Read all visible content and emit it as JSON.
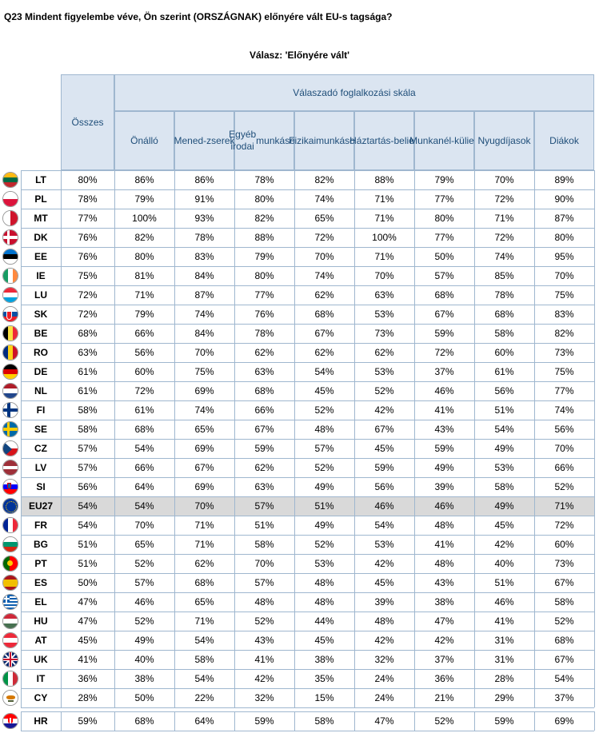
{
  "question_title": "Q23 Mindent figyelembe véve, Ön szerint (ORSZÁGNAK) előnyére vált EU-s tagsága?",
  "answer_label": "Válasz: 'Előnyére vált'",
  "header": {
    "overall": "Összes",
    "group": "Válaszadó foglalkozási skála",
    "columns": [
      "Önálló",
      "Menedzserek",
      "Egyéb irodai munkások",
      "Fizikai munkások",
      "Háztartásbeliek",
      "Munkanélküliek",
      "Nyugdíjasok",
      "Diákok"
    ],
    "columns_display": [
      [
        "Önálló"
      ],
      [
        "Mened-",
        "zserek"
      ],
      [
        "Egyéb irodai",
        "munkások"
      ],
      [
        "Fizikai",
        "munkások"
      ],
      [
        "Háztartás-",
        "beliek"
      ],
      [
        "Munkanél-",
        "küliek"
      ],
      [
        "Nyugdíjasok"
      ],
      [
        "Diákok"
      ]
    ]
  },
  "rows": [
    {
      "country": "LT",
      "flag": "LT",
      "values": [
        "80%",
        "86%",
        "86%",
        "78%",
        "82%",
        "88%",
        "79%",
        "70%",
        "89%"
      ]
    },
    {
      "country": "PL",
      "flag": "PL",
      "values": [
        "78%",
        "79%",
        "91%",
        "80%",
        "74%",
        "71%",
        "77%",
        "72%",
        "90%"
      ]
    },
    {
      "country": "MT",
      "flag": "MT",
      "values": [
        "77%",
        "100%",
        "93%",
        "82%",
        "65%",
        "71%",
        "80%",
        "71%",
        "87%"
      ]
    },
    {
      "country": "DK",
      "flag": "DK",
      "values": [
        "76%",
        "82%",
        "78%",
        "88%",
        "72%",
        "100%",
        "77%",
        "72%",
        "80%"
      ]
    },
    {
      "country": "EE",
      "flag": "EE",
      "values": [
        "76%",
        "80%",
        "83%",
        "79%",
        "70%",
        "71%",
        "50%",
        "74%",
        "95%"
      ]
    },
    {
      "country": "IE",
      "flag": "IE",
      "values": [
        "75%",
        "81%",
        "84%",
        "80%",
        "74%",
        "70%",
        "57%",
        "85%",
        "70%"
      ]
    },
    {
      "country": "LU",
      "flag": "LU",
      "values": [
        "72%",
        "71%",
        "87%",
        "77%",
        "62%",
        "63%",
        "68%",
        "78%",
        "75%"
      ]
    },
    {
      "country": "SK",
      "flag": "SK",
      "values": [
        "72%",
        "79%",
        "74%",
        "76%",
        "68%",
        "53%",
        "67%",
        "68%",
        "83%"
      ]
    },
    {
      "country": "BE",
      "flag": "BE",
      "values": [
        "68%",
        "66%",
        "84%",
        "78%",
        "67%",
        "73%",
        "59%",
        "58%",
        "82%"
      ]
    },
    {
      "country": "RO",
      "flag": "RO",
      "values": [
        "63%",
        "56%",
        "70%",
        "62%",
        "62%",
        "62%",
        "72%",
        "60%",
        "73%"
      ]
    },
    {
      "country": "DE",
      "flag": "DE",
      "values": [
        "61%",
        "60%",
        "75%",
        "63%",
        "54%",
        "53%",
        "37%",
        "61%",
        "75%"
      ]
    },
    {
      "country": "NL",
      "flag": "NL",
      "values": [
        "61%",
        "72%",
        "69%",
        "68%",
        "45%",
        "52%",
        "46%",
        "56%",
        "77%"
      ]
    },
    {
      "country": "FI",
      "flag": "FI",
      "values": [
        "58%",
        "61%",
        "74%",
        "66%",
        "52%",
        "42%",
        "41%",
        "51%",
        "74%"
      ]
    },
    {
      "country": "SE",
      "flag": "SE",
      "values": [
        "58%",
        "68%",
        "65%",
        "67%",
        "48%",
        "67%",
        "43%",
        "54%",
        "56%"
      ]
    },
    {
      "country": "CZ",
      "flag": "CZ",
      "values": [
        "57%",
        "54%",
        "69%",
        "59%",
        "57%",
        "45%",
        "59%",
        "49%",
        "70%"
      ]
    },
    {
      "country": "LV",
      "flag": "LV",
      "values": [
        "57%",
        "66%",
        "67%",
        "62%",
        "52%",
        "59%",
        "49%",
        "53%",
        "66%"
      ]
    },
    {
      "country": "SI",
      "flag": "SI",
      "values": [
        "56%",
        "64%",
        "69%",
        "63%",
        "49%",
        "56%",
        "39%",
        "58%",
        "52%"
      ]
    },
    {
      "country": "EU27",
      "flag": "EU",
      "highlight": true,
      "values": [
        "54%",
        "54%",
        "70%",
        "57%",
        "51%",
        "46%",
        "46%",
        "49%",
        "71%"
      ]
    },
    {
      "country": "FR",
      "flag": "FR",
      "values": [
        "54%",
        "70%",
        "71%",
        "51%",
        "49%",
        "54%",
        "48%",
        "45%",
        "72%"
      ]
    },
    {
      "country": "BG",
      "flag": "BG",
      "values": [
        "51%",
        "65%",
        "71%",
        "58%",
        "52%",
        "53%",
        "41%",
        "42%",
        "60%"
      ]
    },
    {
      "country": "PT",
      "flag": "PT",
      "values": [
        "51%",
        "52%",
        "62%",
        "70%",
        "53%",
        "42%",
        "48%",
        "40%",
        "73%"
      ]
    },
    {
      "country": "ES",
      "flag": "ES",
      "values": [
        "50%",
        "57%",
        "68%",
        "57%",
        "48%",
        "45%",
        "43%",
        "51%",
        "67%"
      ]
    },
    {
      "country": "EL",
      "flag": "EL",
      "values": [
        "47%",
        "46%",
        "65%",
        "48%",
        "48%",
        "39%",
        "38%",
        "46%",
        "58%"
      ]
    },
    {
      "country": "HU",
      "flag": "HU",
      "values": [
        "47%",
        "52%",
        "71%",
        "52%",
        "44%",
        "48%",
        "47%",
        "41%",
        "52%"
      ]
    },
    {
      "country": "AT",
      "flag": "AT",
      "values": [
        "45%",
        "49%",
        "54%",
        "43%",
        "45%",
        "42%",
        "42%",
        "31%",
        "68%"
      ]
    },
    {
      "country": "UK",
      "flag": "UK",
      "values": [
        "41%",
        "40%",
        "58%",
        "41%",
        "38%",
        "32%",
        "37%",
        "31%",
        "67%"
      ]
    },
    {
      "country": "IT",
      "flag": "IT",
      "values": [
        "36%",
        "38%",
        "54%",
        "42%",
        "35%",
        "24%",
        "36%",
        "28%",
        "54%"
      ]
    },
    {
      "country": "CY",
      "flag": "CY",
      "values": [
        "28%",
        "50%",
        "22%",
        "32%",
        "15%",
        "24%",
        "21%",
        "29%",
        "37%"
      ]
    }
  ],
  "footer_row": {
    "country": "HR",
    "flag": "HR",
    "values": [
      "59%",
      "68%",
      "64%",
      "59%",
      "58%",
      "47%",
      "52%",
      "59%",
      "69%"
    ]
  },
  "colors": {
    "header_bg": "#dbe5f1",
    "header_text": "#1f4e79",
    "grid_line": "#9fb7cf",
    "highlight_bg": "#d9d9d9"
  }
}
